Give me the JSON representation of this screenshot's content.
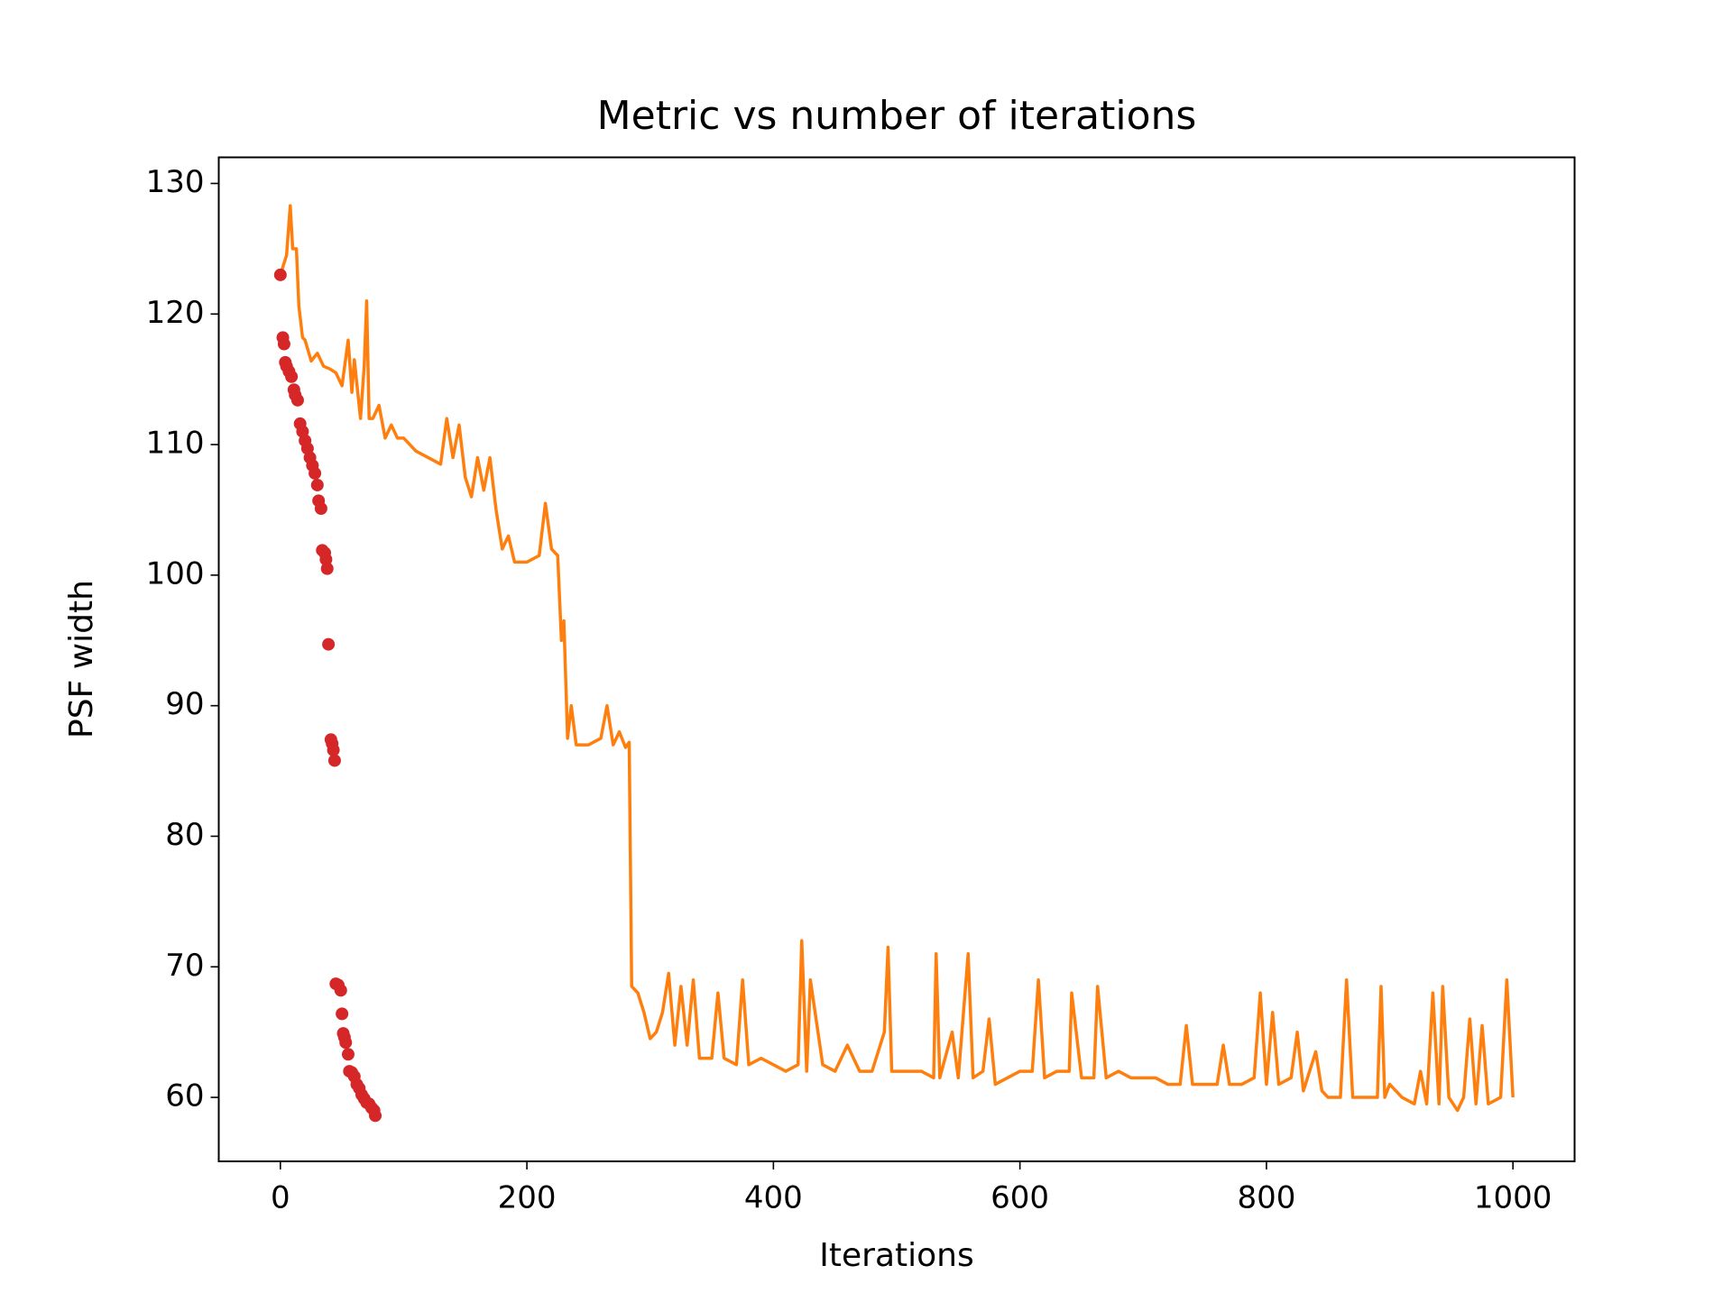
{
  "chart_data": {
    "type": "line",
    "title": "Metric vs number of iterations",
    "x_label": "Iterations",
    "y_label": "PSF width",
    "xlim": [
      -50,
      1050
    ],
    "ylim": [
      55.1,
      132
    ],
    "xticks": [
      0,
      200,
      400,
      600,
      800,
      1000
    ],
    "yticks": [
      60,
      70,
      80,
      90,
      100,
      110,
      120,
      130
    ],
    "series": [
      {
        "type": "line",
        "color": "#ff7f0e",
        "x": [
          0,
          5,
          8,
          10,
          13,
          15,
          18,
          20,
          25,
          30,
          35,
          40,
          45,
          50,
          55,
          58,
          60,
          65,
          68,
          70,
          72,
          75,
          80,
          85,
          90,
          95,
          100,
          110,
          120,
          130,
          135,
          140,
          145,
          150,
          155,
          160,
          165,
          170,
          175,
          180,
          185,
          190,
          200,
          210,
          215,
          220,
          225,
          228,
          230,
          233,
          236,
          240,
          250,
          260,
          265,
          270,
          275,
          280,
          283,
          285,
          290,
          295,
          300,
          305,
          310,
          315,
          320,
          325,
          330,
          335,
          340,
          350,
          355,
          360,
          370,
          375,
          380,
          390,
          400,
          410,
          420,
          423,
          427,
          430,
          440,
          450,
          460,
          470,
          480,
          490,
          493,
          496,
          500,
          510,
          520,
          530,
          532,
          535,
          545,
          550,
          558,
          562,
          570,
          575,
          580,
          590,
          600,
          610,
          615,
          620,
          630,
          640,
          642,
          650,
          660,
          663,
          670,
          680,
          690,
          700,
          710,
          720,
          730,
          735,
          740,
          750,
          760,
          765,
          770,
          780,
          790,
          795,
          800,
          805,
          810,
          820,
          825,
          830,
          840,
          845,
          850,
          860,
          865,
          870,
          880,
          890,
          893,
          896,
          900,
          910,
          920,
          925,
          930,
          935,
          940,
          943,
          948,
          955,
          960,
          965,
          970,
          975,
          980,
          990,
          995,
          1000
        ],
        "values": [
          123,
          124.5,
          128.3,
          125,
          125,
          120.6,
          118.2,
          118,
          116.4,
          117,
          116,
          115.8,
          115.5,
          114.5,
          118,
          114,
          116.5,
          112,
          116,
          121,
          112,
          112,
          113,
          110.5,
          111.5,
          110.5,
          110.5,
          109.5,
          109,
          108.5,
          112,
          109,
          111.5,
          107.5,
          106,
          109,
          106.5,
          109,
          105,
          102,
          103,
          101,
          101,
          101.5,
          105.5,
          102,
          101.5,
          95,
          96.5,
          87.5,
          90,
          87,
          87,
          87.5,
          90,
          87,
          88,
          86.8,
          87.2,
          68.5,
          68,
          66.5,
          64.5,
          65,
          66.5,
          69.5,
          64,
          68.5,
          64,
          69,
          63,
          63,
          68,
          63,
          62.5,
          69,
          62.5,
          63,
          62.5,
          62,
          62.5,
          72,
          62,
          69,
          62.5,
          62,
          64,
          62,
          62,
          65,
          71.5,
          62,
          62,
          62,
          62,
          61.5,
          71,
          61.5,
          65,
          61.5,
          71,
          61.5,
          62,
          66,
          61,
          61.5,
          62,
          62,
          69,
          61.5,
          62,
          62,
          68,
          61.5,
          61.5,
          68.5,
          61.5,
          62,
          61.5,
          61.5,
          61.5,
          61,
          61,
          65.5,
          61,
          61,
          61,
          64,
          61,
          61,
          61.5,
          68,
          61,
          66.5,
          61,
          61.5,
          65,
          60.5,
          63.5,
          60.5,
          60,
          60,
          69,
          60,
          60,
          60,
          68.5,
          60,
          61,
          60,
          59.5,
          62,
          59.5,
          68,
          59.5,
          68.5,
          60,
          59,
          60,
          66,
          59.5,
          65.5,
          59.5,
          60,
          69,
          60
        ]
      },
      {
        "type": "scatter",
        "color": "#d62728",
        "x": [
          0,
          2,
          3,
          4,
          5,
          7,
          9,
          11,
          12,
          14,
          16,
          18,
          20,
          22,
          24,
          26,
          28,
          30,
          31,
          33,
          34,
          36,
          37,
          38,
          39,
          41,
          42,
          43,
          44,
          45,
          47,
          49,
          50,
          51,
          52,
          53,
          55,
          56,
          58,
          60,
          62,
          64,
          66,
          68,
          70,
          72,
          74,
          76,
          77
        ],
        "values": [
          123,
          118.2,
          117.7,
          116.3,
          116,
          115.6,
          115.2,
          114.2,
          113.8,
          113.4,
          111.6,
          111,
          110.3,
          109.7,
          109,
          108.4,
          107.8,
          106.9,
          105.7,
          105.1,
          101.9,
          101.7,
          101.2,
          100.5,
          94.7,
          87.4,
          87.1,
          86.6,
          85.8,
          68.7,
          68.6,
          68.2,
          66.4,
          64.9,
          64.6,
          64.2,
          63.3,
          62,
          61.9,
          61.6,
          61,
          60.7,
          60.2,
          59.9,
          59.6,
          59.5,
          59.2,
          59,
          58.6
        ]
      }
    ]
  }
}
